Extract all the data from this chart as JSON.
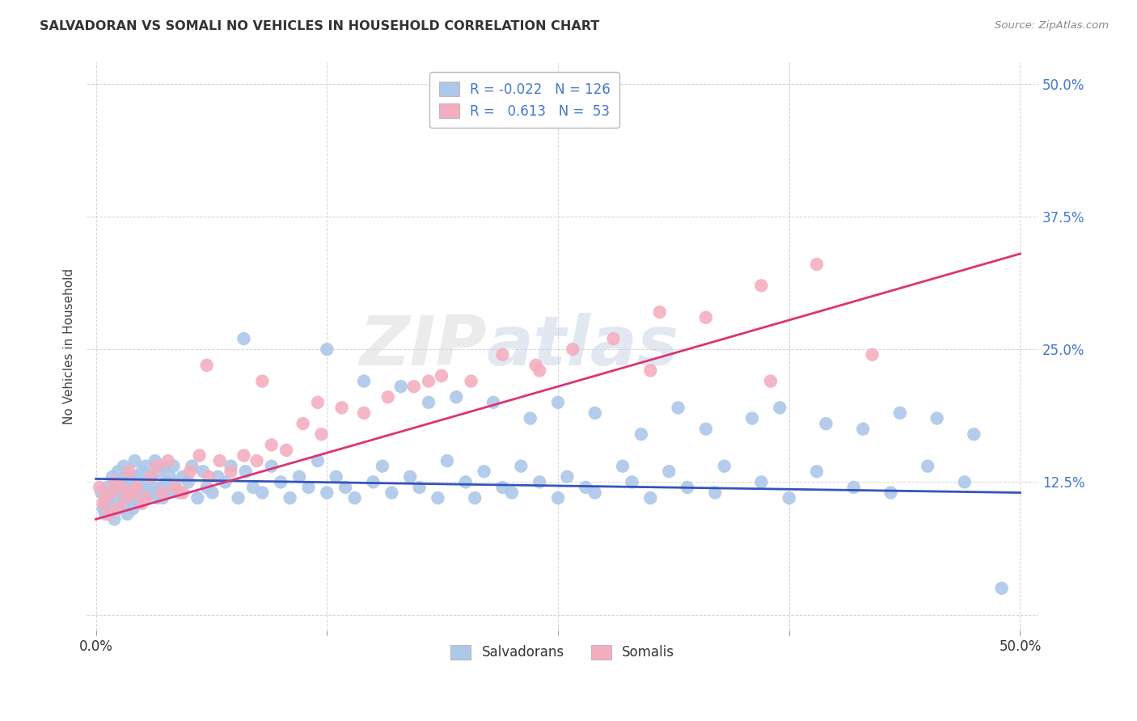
{
  "title": "SALVADORAN VS SOMALI NO VEHICLES IN HOUSEHOLD CORRELATION CHART",
  "source": "Source: ZipAtlas.com",
  "ylabel": "No Vehicles in Household",
  "legend_r_salvador": "-0.022",
  "legend_n_salvador": "126",
  "legend_r_somali": "0.613",
  "legend_n_somali": "53",
  "color_salvador": "#adc8e8",
  "color_somali": "#f4aec0",
  "color_trendline_salvador": "#3355bb",
  "color_trendline_somali": "#dd3377",
  "watermark_zip": "ZIP",
  "watermark_atlas": "atlas",
  "background_color": "#ffffff",
  "grid_color": "#cccccc",
  "ytick_color": "#4477cc",
  "xlim": [
    0,
    50
  ],
  "ylim": [
    0,
    50
  ],
  "yticks": [
    0,
    12.5,
    25.0,
    37.5,
    50.0
  ],
  "xticks": [
    0,
    12.5,
    25.0,
    37.5,
    50.0
  ],
  "salvador_x": [
    0.3,
    0.4,
    0.5,
    0.6,
    0.7,
    0.8,
    0.9,
    1.0,
    1.0,
    1.1,
    1.2,
    1.2,
    1.3,
    1.4,
    1.5,
    1.5,
    1.6,
    1.7,
    1.7,
    1.8,
    1.9,
    2.0,
    2.0,
    2.1,
    2.1,
    2.2,
    2.3,
    2.3,
    2.4,
    2.5,
    2.5,
    2.6,
    2.7,
    2.8,
    2.9,
    3.0,
    3.1,
    3.2,
    3.3,
    3.4,
    3.5,
    3.6,
    3.7,
    3.8,
    3.9,
    4.0,
    4.2,
    4.3,
    4.5,
    4.7,
    5.0,
    5.2,
    5.5,
    5.8,
    6.0,
    6.3,
    6.6,
    7.0,
    7.3,
    7.7,
    8.1,
    8.5,
    9.0,
    9.5,
    10.0,
    10.5,
    11.0,
    11.5,
    12.0,
    12.5,
    13.0,
    13.5,
    14.0,
    15.0,
    15.5,
    16.0,
    17.0,
    17.5,
    18.5,
    19.0,
    20.0,
    20.5,
    21.0,
    22.0,
    22.5,
    23.0,
    24.0,
    25.0,
    25.5,
    26.5,
    27.0,
    28.5,
    29.0,
    30.0,
    31.0,
    32.0,
    33.5,
    34.0,
    36.0,
    37.5,
    39.0,
    41.0,
    43.0,
    45.0,
    47.0,
    49.0,
    8.0,
    12.5,
    14.5,
    16.5,
    18.0,
    19.5,
    21.5,
    23.5,
    25.0,
    27.0,
    29.5,
    31.5,
    33.0,
    35.5,
    37.0,
    39.5,
    41.5,
    43.5,
    45.5,
    47.5
  ],
  "salvador_y": [
    11.5,
    10.0,
    9.5,
    12.0,
    10.5,
    11.0,
    13.0,
    9.0,
    12.5,
    11.5,
    10.0,
    13.5,
    12.0,
    11.0,
    10.5,
    14.0,
    13.0,
    9.5,
    12.5,
    11.0,
    13.0,
    12.0,
    10.0,
    14.5,
    11.5,
    13.0,
    12.0,
    10.5,
    11.0,
    13.5,
    12.0,
    11.0,
    14.0,
    12.5,
    11.5,
    13.0,
    12.0,
    14.5,
    11.0,
    13.5,
    12.0,
    11.0,
    14.0,
    12.5,
    11.5,
    13.0,
    14.0,
    12.0,
    11.5,
    13.0,
    12.5,
    14.0,
    11.0,
    13.5,
    12.0,
    11.5,
    13.0,
    12.5,
    14.0,
    11.0,
    13.5,
    12.0,
    11.5,
    14.0,
    12.5,
    11.0,
    13.0,
    12.0,
    14.5,
    11.5,
    13.0,
    12.0,
    11.0,
    12.5,
    14.0,
    11.5,
    13.0,
    12.0,
    11.0,
    14.5,
    12.5,
    11.0,
    13.5,
    12.0,
    11.5,
    14.0,
    12.5,
    11.0,
    13.0,
    12.0,
    11.5,
    14.0,
    12.5,
    11.0,
    13.5,
    12.0,
    11.5,
    14.0,
    12.5,
    11.0,
    13.5,
    12.0,
    11.5,
    14.0,
    12.5,
    2.5,
    26.0,
    25.0,
    22.0,
    21.5,
    20.0,
    20.5,
    20.0,
    18.5,
    20.0,
    19.0,
    17.0,
    19.5,
    17.5,
    18.5,
    19.5,
    18.0,
    17.5,
    19.0,
    18.5,
    17.0
  ],
  "somali_x": [
    0.2,
    0.4,
    0.5,
    0.7,
    0.8,
    1.0,
    1.2,
    1.4,
    1.6,
    1.8,
    2.0,
    2.2,
    2.5,
    2.7,
    3.0,
    3.3,
    3.6,
    3.9,
    4.3,
    4.7,
    5.1,
    5.6,
    6.1,
    6.7,
    7.3,
    8.0,
    8.7,
    9.5,
    10.3,
    11.2,
    12.2,
    13.3,
    14.5,
    15.8,
    17.2,
    18.7,
    20.3,
    22.0,
    23.8,
    25.8,
    28.0,
    30.5,
    33.0,
    36.0,
    39.0,
    6.0,
    9.0,
    12.0,
    18.0,
    24.0,
    30.0,
    36.5,
    42.0
  ],
  "somali_y": [
    12.0,
    10.5,
    11.0,
    9.5,
    11.5,
    12.5,
    10.0,
    12.0,
    11.0,
    13.5,
    11.5,
    12.0,
    10.5,
    11.0,
    13.0,
    14.0,
    11.5,
    14.5,
    12.0,
    11.5,
    13.5,
    15.0,
    13.0,
    14.5,
    13.5,
    15.0,
    14.5,
    16.0,
    15.5,
    18.0,
    17.0,
    19.5,
    19.0,
    20.5,
    21.5,
    22.5,
    22.0,
    24.5,
    23.5,
    25.0,
    26.0,
    28.5,
    28.0,
    31.0,
    33.0,
    23.5,
    22.0,
    20.0,
    22.0,
    23.0,
    23.0,
    22.0,
    24.5
  ]
}
